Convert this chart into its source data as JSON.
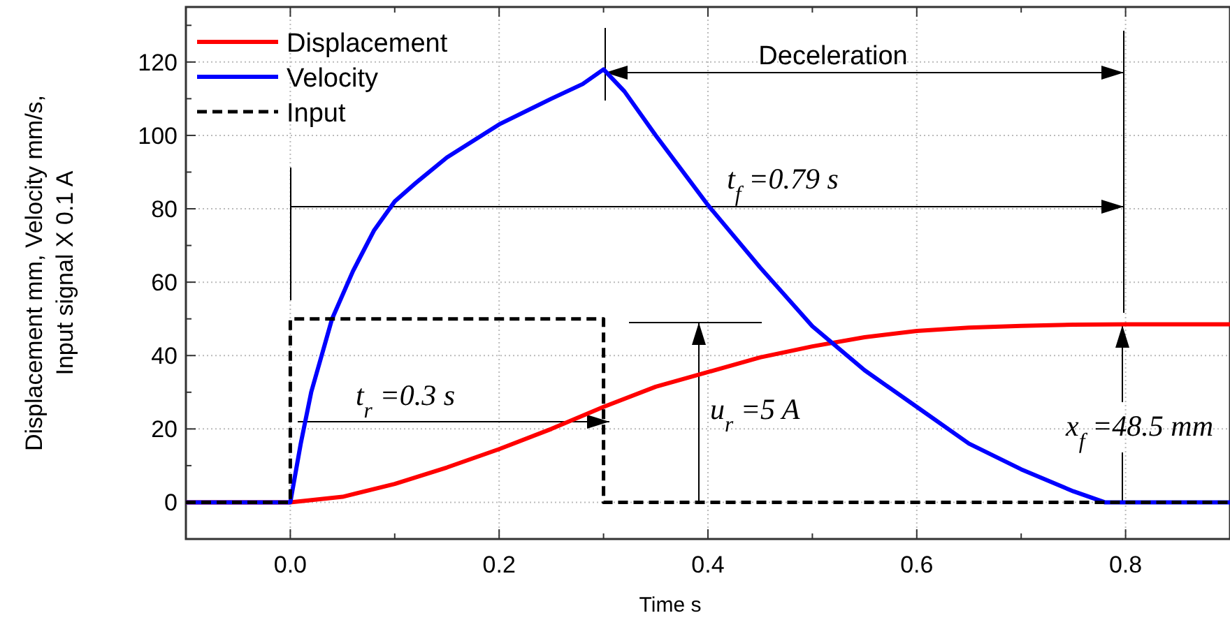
{
  "chart_data": {
    "type": "line",
    "xlabel": "Time s",
    "ylabel": "Displacement mm, Velocity mm/s,\nInput signal X 0.1 A",
    "xlim": [
      -0.1,
      0.9
    ],
    "ylim": [
      -10,
      135
    ],
    "xticks": [
      {
        "value": -0.1,
        "label": null
      },
      {
        "value": 0,
        "label": "0.0"
      },
      {
        "value": 0.1,
        "label": null
      },
      {
        "value": 0.2,
        "label": "0.2"
      },
      {
        "value": 0.3,
        "label": null
      },
      {
        "value": 0.4,
        "label": "0.4"
      },
      {
        "value": 0.5,
        "label": null
      },
      {
        "value": 0.6,
        "label": "0.6"
      },
      {
        "value": 0.7,
        "label": null
      },
      {
        "value": 0.8,
        "label": "0.8"
      }
    ],
    "yticks": [
      {
        "value": -10,
        "label": null
      },
      0,
      {
        "value": 10,
        "label": null
      },
      20,
      {
        "value": 30,
        "label": null
      },
      40,
      {
        "value": 50,
        "label": null
      },
      60,
      {
        "value": 70,
        "label": null
      },
      80,
      {
        "value": 90,
        "label": null
      },
      100,
      {
        "value": 110,
        "label": null
      },
      120,
      {
        "value": 130,
        "label": null
      }
    ],
    "grid": true,
    "legend": "top left",
    "series": [
      {
        "name": "Displacement",
        "color": "#ff0000",
        "line_style": "solid",
        "x": [
          -0.1,
          0,
          0.05,
          0.1,
          0.15,
          0.2,
          0.25,
          0.3,
          0.35,
          0.4,
          0.45,
          0.5,
          0.55,
          0.6,
          0.65,
          0.7,
          0.75,
          0.8,
          0.9
        ],
        "values": [
          0,
          0,
          1.5,
          5,
          9.5,
          14.5,
          20,
          26,
          31.5,
          35.5,
          39.5,
          42.5,
          45,
          46.7,
          47.6,
          48.1,
          48.4,
          48.5,
          48.5
        ]
      },
      {
        "name": "Velocity",
        "color": "#0000ff",
        "line_style": "solid",
        "x": [
          -0.1,
          0,
          0.01,
          0.02,
          0.03,
          0.04,
          0.06,
          0.08,
          0.1,
          0.12,
          0.15,
          0.2,
          0.25,
          0.28,
          0.3,
          0.32,
          0.35,
          0.4,
          0.45,
          0.5,
          0.55,
          0.6,
          0.65,
          0.7,
          0.75,
          0.78,
          0.9
        ],
        "values": [
          0,
          0,
          16,
          30,
          40,
          50,
          63,
          74,
          82,
          87,
          94,
          103,
          110,
          114,
          118,
          112,
          100,
          81,
          64,
          48,
          36,
          26,
          16,
          9,
          3,
          0,
          0
        ]
      },
      {
        "name": "Input",
        "color": "#000000",
        "line_style": "dashed",
        "x": [
          -0.1,
          0,
          0,
          0.3,
          0.3,
          0.9
        ],
        "values": [
          0,
          0,
          50,
          50,
          0,
          0
        ]
      }
    ],
    "annotations": [
      "Deceleration",
      "t$_{f}$ =0.79 s",
      "t$_{r}$ =0.3 s",
      "u$_{r}$ =5 A",
      "x$_{f}$ =48.5 mm"
    ]
  }
}
